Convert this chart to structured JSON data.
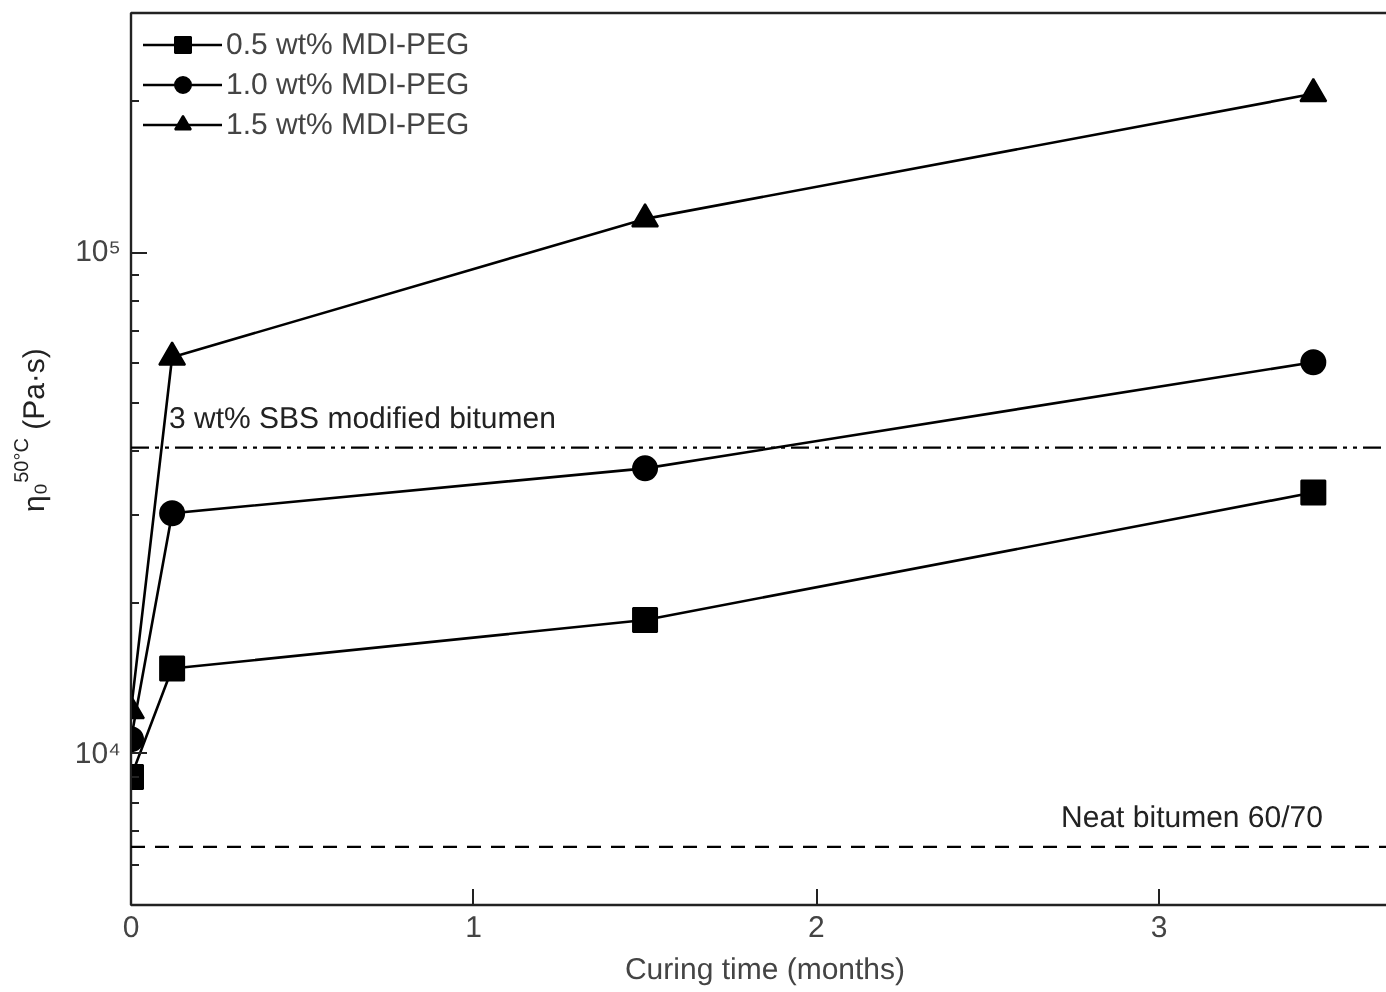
{
  "chart_data": {
    "type": "line",
    "xlabel": "Curing time (months)",
    "ylabel": "η₀$^{50°C}$ (Pa·s)",
    "x": [
      0,
      0.12,
      1.5,
      3.45
    ],
    "series": [
      {
        "name": "0.5 wt% MDI-PEG",
        "color": "#000000",
        "marker": "square",
        "values": [
          9000,
          14800,
          18500,
          33200
        ]
      },
      {
        "name": "1.0 wt% MDI-PEG",
        "color": "#000000",
        "marker": "circle",
        "values": [
          10700,
          30200,
          37100,
          60400
        ]
      },
      {
        "name": "1.5 wt% MDI-PEG",
        "color": "#000000",
        "marker": "triangle",
        "values": [
          12200,
          61800,
          116600,
          207000
        ]
      }
    ],
    "log": "y",
    "xlim": [
      0,
      3.7
    ],
    "xticks": [
      0,
      1,
      2,
      3
    ],
    "ylim": [
      5000,
      300000
    ],
    "yticks": [
      {
        "value": 6000,
        "label": null
      },
      {
        "value": 7000,
        "label": null
      },
      {
        "value": 8000,
        "label": null
      },
      {
        "value": 9000,
        "label": null
      },
      {
        "value": 10000,
        "label": "10⁴"
      },
      {
        "value": 20000,
        "label": null
      },
      {
        "value": 30000,
        "label": null
      },
      {
        "value": 40000,
        "label": null
      },
      {
        "value": 50000,
        "label": null
      },
      {
        "value": 60000,
        "label": null
      },
      {
        "value": 70000,
        "label": null
      },
      {
        "value": 80000,
        "label": null
      },
      {
        "value": 90000,
        "label": null
      },
      {
        "value": 100000,
        "label": "10⁵"
      },
      {
        "value": 200000,
        "label": null
      }
    ],
    "ref_lines": [
      {
        "axis": "y",
        "value": 40800,
        "label": "3 wt% SBS modified bitumen",
        "color": "#000000",
        "line_style": "dashdotdot"
      },
      {
        "axis": "y",
        "value": 6530,
        "label": "Neat bitumen 60/70",
        "color": "#000000",
        "line_style": "dashed"
      }
    ],
    "legend": "top left",
    "grid": false,
    "line_style": "solid"
  }
}
